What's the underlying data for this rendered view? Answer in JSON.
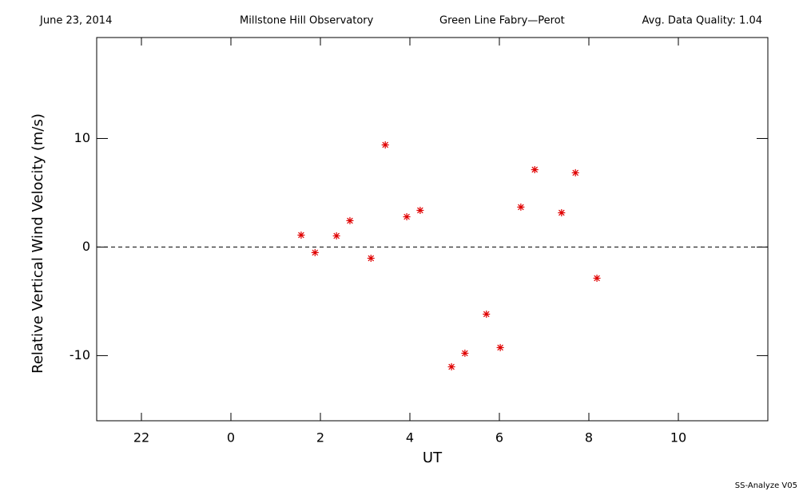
{
  "chart_data": {
    "type": "scatter",
    "header": [
      "June 23, 2014",
      "Millstone Hill Observatory",
      "Green Line Fabry—Perot",
      "Avg. Data Quality: 1.04"
    ],
    "footer": "SS-Analyze V05",
    "xlabel": "UT",
    "ylabel": "Relative Vertical Wind Velocity (m/s)",
    "xlim": [
      -3,
      12
    ],
    "ylim": [
      -16,
      19.3
    ],
    "xticks": [
      {
        "value": -2,
        "label": "22"
      },
      0,
      2,
      4,
      6,
      8,
      10
    ],
    "yticks": [
      -10,
      0,
      10
    ],
    "hline": 0,
    "color": "#e00000",
    "x": [
      1.57,
      1.88,
      2.36,
      2.66,
      3.13,
      3.45,
      3.93,
      4.23,
      4.93,
      5.23,
      5.71,
      6.02,
      6.48,
      6.79,
      7.39,
      7.7,
      8.18
    ],
    "values": [
      1.1,
      -0.51,
      1.03,
      2.43,
      -1.03,
      9.41,
      2.79,
      3.38,
      -11.03,
      -9.78,
      -6.18,
      -9.26,
      3.68,
      7.13,
      3.16,
      6.84,
      -2.87
    ]
  }
}
